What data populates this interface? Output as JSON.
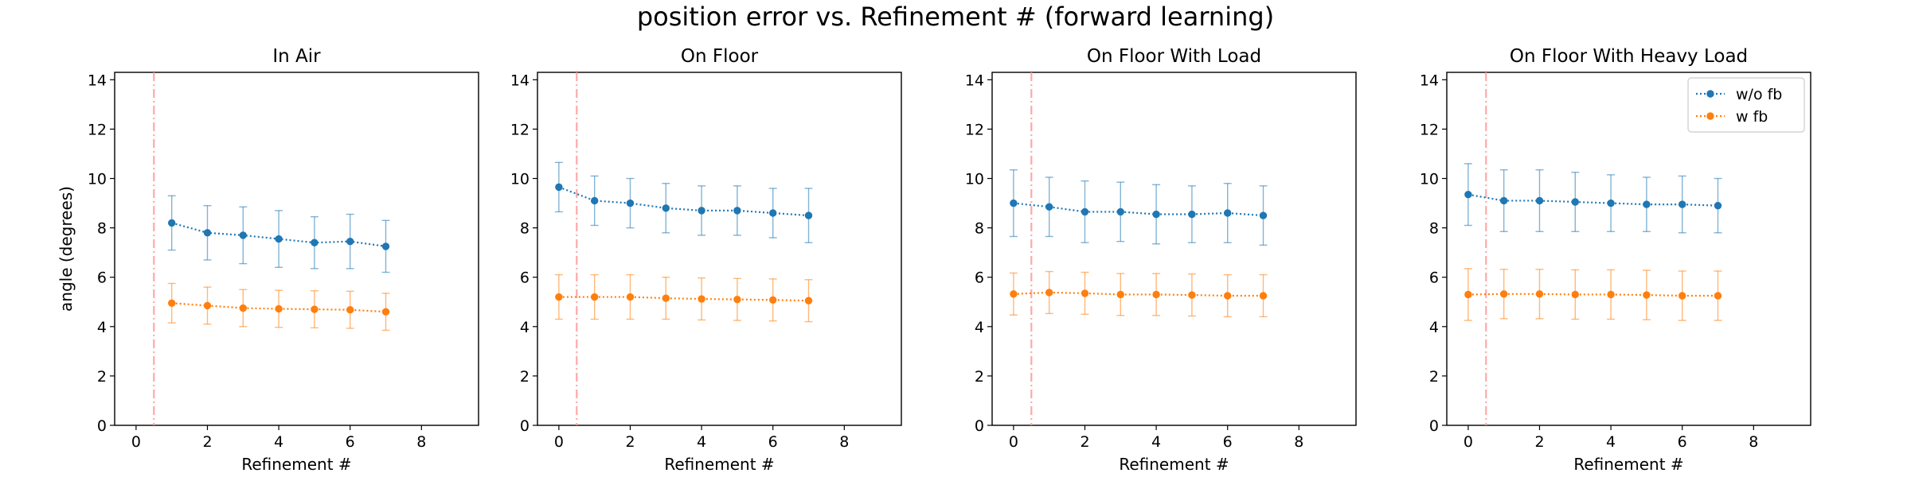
{
  "figure": {
    "suptitle": "position error vs. Refinement # (forward learning)"
  },
  "chart_data": [
    {
      "type": "line",
      "title": "In Air",
      "xlabel": "Refinement #",
      "ylabel": "angle (degrees)",
      "xlim": [
        -0.6,
        9.6
      ],
      "ylim": [
        0,
        14.3
      ],
      "xticks": [
        0,
        2,
        4,
        6,
        8
      ],
      "yticks": [
        0,
        2,
        4,
        6,
        8,
        10,
        12,
        14
      ],
      "vline_x": 0.5,
      "grid": false,
      "x": [
        1,
        2,
        3,
        4,
        5,
        6,
        7
      ],
      "series": [
        {
          "name": "w/o fb",
          "color": "#1f77b4",
          "values": [
            8.2,
            7.8,
            7.7,
            7.55,
            7.4,
            7.45,
            7.25
          ],
          "errors": [
            1.1,
            1.1,
            1.15,
            1.15,
            1.05,
            1.1,
            1.05
          ]
        },
        {
          "name": "w fb",
          "color": "#ff7f0e",
          "values": [
            4.95,
            4.85,
            4.75,
            4.72,
            4.7,
            4.68,
            4.6
          ],
          "errors": [
            0.8,
            0.75,
            0.75,
            0.75,
            0.75,
            0.75,
            0.75
          ]
        }
      ],
      "legend": false
    },
    {
      "type": "line",
      "title": "On Floor",
      "xlabel": "Refinement #",
      "ylabel": "",
      "xlim": [
        -0.6,
        9.6
      ],
      "ylim": [
        0,
        14.3
      ],
      "xticks": [
        0,
        2,
        4,
        6,
        8
      ],
      "yticks": [
        0,
        2,
        4,
        6,
        8,
        10,
        12,
        14
      ],
      "vline_x": 0.5,
      "grid": false,
      "x": [
        0,
        1,
        2,
        3,
        4,
        5,
        6,
        7
      ],
      "series": [
        {
          "name": "w/o fb",
          "color": "#1f77b4",
          "values": [
            9.65,
            9.1,
            9.0,
            8.8,
            8.7,
            8.7,
            8.6,
            8.5
          ],
          "errors": [
            1.0,
            1.0,
            1.0,
            1.0,
            1.0,
            1.0,
            1.0,
            1.1
          ]
        },
        {
          "name": "w fb",
          "color": "#ff7f0e",
          "values": [
            5.2,
            5.2,
            5.2,
            5.15,
            5.12,
            5.1,
            5.08,
            5.05
          ],
          "errors": [
            0.9,
            0.9,
            0.9,
            0.85,
            0.85,
            0.85,
            0.85,
            0.85
          ]
        }
      ],
      "legend": false
    },
    {
      "type": "line",
      "title": "On Floor With Load",
      "xlabel": "Refinement #",
      "ylabel": "",
      "xlim": [
        -0.6,
        9.6
      ],
      "ylim": [
        0,
        14.3
      ],
      "xticks": [
        0,
        2,
        4,
        6,
        8
      ],
      "yticks": [
        0,
        2,
        4,
        6,
        8,
        10,
        12,
        14
      ],
      "vline_x": 0.5,
      "grid": false,
      "x": [
        0,
        1,
        2,
        3,
        4,
        5,
        6,
        7
      ],
      "series": [
        {
          "name": "w/o fb",
          "color": "#1f77b4",
          "values": [
            9.0,
            8.85,
            8.65,
            8.65,
            8.55,
            8.55,
            8.6,
            8.5
          ],
          "errors": [
            1.35,
            1.2,
            1.25,
            1.2,
            1.2,
            1.15,
            1.2,
            1.2
          ]
        },
        {
          "name": "w fb",
          "color": "#ff7f0e",
          "values": [
            5.32,
            5.38,
            5.35,
            5.3,
            5.3,
            5.28,
            5.25,
            5.25
          ],
          "errors": [
            0.85,
            0.85,
            0.85,
            0.85,
            0.85,
            0.85,
            0.85,
            0.85
          ]
        }
      ],
      "legend": false
    },
    {
      "type": "line",
      "title": "On Floor With Heavy Load",
      "xlabel": "Refinement #",
      "ylabel": "",
      "xlim": [
        -0.6,
        9.6
      ],
      "ylim": [
        0,
        14.3
      ],
      "xticks": [
        0,
        2,
        4,
        6,
        8
      ],
      "yticks": [
        0,
        2,
        4,
        6,
        8,
        10,
        12,
        14
      ],
      "vline_x": 0.5,
      "grid": false,
      "x": [
        0,
        1,
        2,
        3,
        4,
        5,
        6,
        7
      ],
      "series": [
        {
          "name": "w/o fb",
          "color": "#1f77b4",
          "values": [
            9.35,
            9.1,
            9.1,
            9.05,
            9.0,
            8.95,
            8.95,
            8.9
          ],
          "errors": [
            1.25,
            1.25,
            1.25,
            1.2,
            1.15,
            1.1,
            1.15,
            1.1
          ]
        },
        {
          "name": "w fb",
          "color": "#ff7f0e",
          "values": [
            5.3,
            5.32,
            5.32,
            5.3,
            5.3,
            5.28,
            5.25,
            5.25
          ],
          "errors": [
            1.05,
            1.0,
            1.0,
            1.0,
            1.0,
            1.0,
            1.0,
            1.0
          ]
        }
      ],
      "legend": true,
      "legend_position": "top-right"
    }
  ]
}
